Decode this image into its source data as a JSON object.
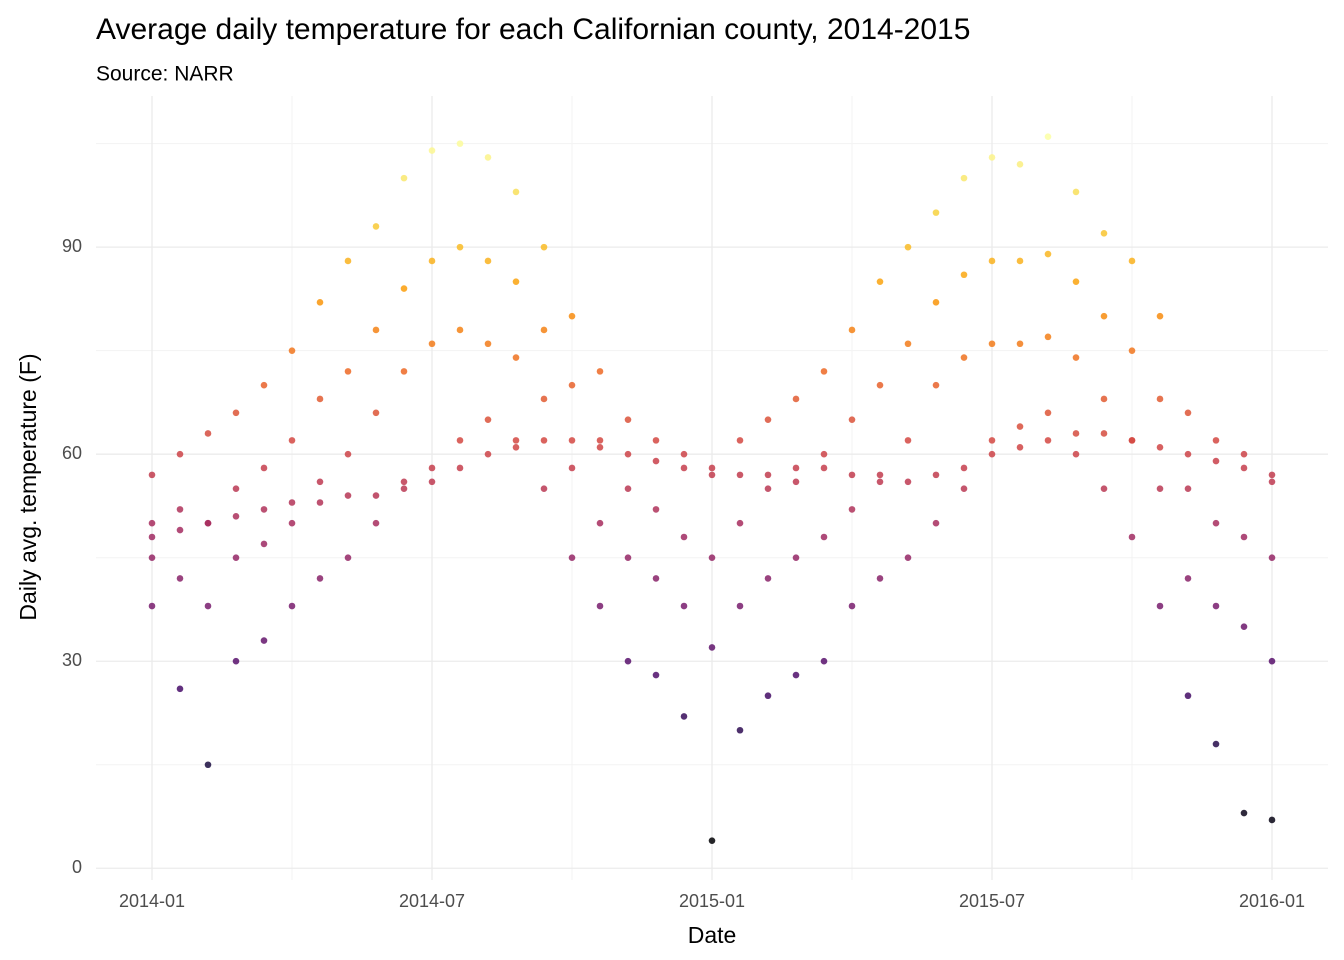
{
  "chart_data": {
    "type": "scatter",
    "title": "Average daily temperature for each Californian county, 2014-2015",
    "subtitle": "Source: NARR",
    "x_label": "Date",
    "y_label": "Daily avg. temperature (F)",
    "xlim": [
      2013.9,
      2016.1
    ],
    "ylim": [
      -1.7,
      111.9
    ],
    "xticks": [
      {
        "value": 2014,
        "label": "2014-01"
      },
      {
        "value": 2014.5,
        "label": "2014-07"
      },
      {
        "value": 2015,
        "label": "2015-01"
      },
      {
        "value": 2015.5,
        "label": "2015-07"
      },
      {
        "value": 2016,
        "label": "2016-01"
      }
    ],
    "minor_xticks": [
      2014.25,
      2014.75,
      2015.25,
      2015.75
    ],
    "yticks": [
      0,
      30,
      60,
      90
    ],
    "minor_yticks": [
      15,
      45,
      75,
      105
    ],
    "grid": true,
    "color_scale": [
      "#000004",
      "#1b0c41",
      "#4a0c6b",
      "#781c6d",
      "#a52c60",
      "#cf4446",
      "#ed6925",
      "#fb9b06",
      "#f7d13d",
      "#fcffa4"
    ],
    "x": [
      2014,
      2014,
      2014,
      2014,
      2014,
      2014.05,
      2014.05,
      2014.05,
      2014.05,
      2014.05,
      2014.1,
      2014.1,
      2014.1,
      2014.1,
      2014.1,
      2014.15,
      2014.15,
      2014.15,
      2014.15,
      2014.15,
      2014.2,
      2014.2,
      2014.2,
      2014.2,
      2014.2,
      2014.25,
      2014.25,
      2014.25,
      2014.25,
      2014.25,
      2014.3,
      2014.3,
      2014.3,
      2014.3,
      2014.3,
      2014.35,
      2014.35,
      2014.35,
      2014.35,
      2014.35,
      2014.4,
      2014.4,
      2014.4,
      2014.4,
      2014.4,
      2014.45,
      2014.45,
      2014.45,
      2014.45,
      2014.45,
      2014.5,
      2014.5,
      2014.5,
      2014.5,
      2014.5,
      2014.55,
      2014.55,
      2014.55,
      2014.55,
      2014.55,
      2014.6,
      2014.6,
      2014.6,
      2014.6,
      2014.6,
      2014.65,
      2014.65,
      2014.65,
      2014.65,
      2014.65,
      2014.7,
      2014.7,
      2014.7,
      2014.7,
      2014.7,
      2014.75,
      2014.75,
      2014.75,
      2014.75,
      2014.75,
      2014.8,
      2014.8,
      2014.8,
      2014.8,
      2014.8,
      2014.85,
      2014.85,
      2014.85,
      2014.85,
      2014.85,
      2014.9,
      2014.9,
      2014.9,
      2014.9,
      2014.9,
      2014.95,
      2014.95,
      2014.95,
      2014.95,
      2014.95,
      2015,
      2015,
      2015,
      2015,
      2015,
      2015.05,
      2015.05,
      2015.05,
      2015.05,
      2015.05,
      2015.1,
      2015.1,
      2015.1,
      2015.1,
      2015.1,
      2015.15,
      2015.15,
      2015.15,
      2015.15,
      2015.15,
      2015.2,
      2015.2,
      2015.2,
      2015.2,
      2015.2,
      2015.25,
      2015.25,
      2015.25,
      2015.25,
      2015.25,
      2015.3,
      2015.3,
      2015.3,
      2015.3,
      2015.3,
      2015.35,
      2015.35,
      2015.35,
      2015.35,
      2015.35,
      2015.4,
      2015.4,
      2015.4,
      2015.4,
      2015.4,
      2015.45,
      2015.45,
      2015.45,
      2015.45,
      2015.45,
      2015.5,
      2015.5,
      2015.5,
      2015.5,
      2015.5,
      2015.55,
      2015.55,
      2015.55,
      2015.55,
      2015.55,
      2015.6,
      2015.6,
      2015.6,
      2015.6,
      2015.6,
      2015.65,
      2015.65,
      2015.65,
      2015.65,
      2015.65,
      2015.7,
      2015.7,
      2015.7,
      2015.7,
      2015.7,
      2015.75,
      2015.75,
      2015.75,
      2015.75,
      2015.75,
      2015.8,
      2015.8,
      2015.8,
      2015.8,
      2015.8,
      2015.85,
      2015.85,
      2015.85,
      2015.85,
      2015.85,
      2015.9,
      2015.9,
      2015.9,
      2015.9,
      2015.9,
      2015.95,
      2015.95,
      2015.95,
      2015.95,
      2015.95,
      2016,
      2016,
      2016,
      2016,
      2016
    ],
    "values": [
      57,
      50,
      45,
      38,
      48,
      60,
      52,
      42,
      26,
      49,
      63,
      50,
      38,
      15,
      50,
      66,
      55,
      45,
      30,
      51,
      70,
      58,
      47,
      33,
      52,
      75,
      62,
      50,
      38,
      53,
      82,
      68,
      56,
      42,
      53,
      88,
      72,
      60,
      45,
      54,
      93,
      78,
      66,
      50,
      54,
      100,
      84,
      72,
      56,
      55,
      104,
      88,
      76,
      58,
      56,
      105,
      90,
      78,
      62,
      58,
      103,
      88,
      76,
      65,
      60,
      98,
      85,
      74,
      62,
      61,
      90,
      78,
      68,
      55,
      62,
      80,
      70,
      58,
      45,
      62,
      72,
      62,
      50,
      38,
      61,
      65,
      55,
      45,
      30,
      60,
      62,
      52,
      42,
      28,
      59,
      60,
      48,
      38,
      22,
      58,
      58,
      45,
      32,
      4,
      57,
      62,
      50,
      38,
      20,
      57,
      65,
      55,
      42,
      25,
      57,
      68,
      56,
      45,
      28,
      58,
      72,
      60,
      48,
      30,
      58,
      78,
      65,
      52,
      38,
      57,
      85,
      70,
      57,
      42,
      56,
      90,
      76,
      62,
      45,
      56,
      95,
      82,
      70,
      50,
      57,
      100,
      86,
      74,
      55,
      58,
      103,
      88,
      76,
      62,
      60,
      102,
      88,
      76,
      64,
      61,
      106,
      89,
      77,
      66,
      62,
      98,
      85,
      74,
      60,
      63,
      92,
      80,
      68,
      55,
      63,
      88,
      75,
      62,
      48,
      62,
      80,
      68,
      55,
      38,
      61,
      66,
      55,
      42,
      25,
      60,
      62,
      50,
      38,
      18,
      59,
      60,
      48,
      35,
      8,
      58,
      57,
      45,
      30,
      7,
      56
    ]
  }
}
